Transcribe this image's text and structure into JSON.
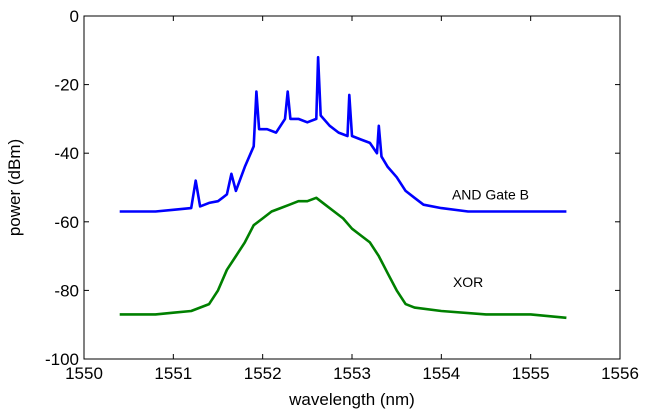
{
  "chart_data": {
    "type": "line",
    "xlabel": "wavelength (nm)",
    "ylabel": "power (dBm)",
    "xlim": [
      1550,
      1556
    ],
    "ylim": [
      -100,
      0
    ],
    "xticks": [
      1550,
      1551,
      1552,
      1553,
      1554,
      1555,
      1556
    ],
    "yticks": [
      0,
      -20,
      -40,
      -60,
      -80,
      -100
    ],
    "grid": false,
    "annotations": [
      {
        "text": "AND Gate B",
        "x": 1554.55,
        "y": -53.5
      },
      {
        "text": "XOR",
        "x": 1554.3,
        "y": -79
      }
    ],
    "series": [
      {
        "color": "#0000ff",
        "x": [
          1550.4,
          1550.6,
          1550.8,
          1551.0,
          1551.2,
          1551.25,
          1551.3,
          1551.4,
          1551.5,
          1551.55,
          1551.6,
          1551.65,
          1551.7,
          1551.8,
          1551.9,
          1551.93,
          1551.96,
          1552.05,
          1552.15,
          1552.25,
          1552.28,
          1552.31,
          1552.4,
          1552.5,
          1552.6,
          1552.62,
          1552.65,
          1552.75,
          1552.85,
          1552.95,
          1552.97,
          1553.0,
          1553.1,
          1553.2,
          1553.28,
          1553.3,
          1553.33,
          1553.4,
          1553.5,
          1553.6,
          1553.7,
          1553.8,
          1554.0,
          1554.3,
          1554.6,
          1555.0,
          1555.4
        ],
        "y": [
          -57,
          -57,
          -57,
          -56.5,
          -56,
          -48,
          -55.5,
          -54.5,
          -54,
          -53,
          -52,
          -46,
          -51,
          -44,
          -38,
          -22,
          -33,
          -33,
          -34,
          -30,
          -22,
          -30,
          -30,
          -31,
          -30,
          -12,
          -29,
          -32,
          -34,
          -35,
          -23,
          -35,
          -36,
          -37,
          -40,
          -32,
          -41,
          -44,
          -47,
          -51,
          -53,
          -55,
          -56,
          -57,
          -57,
          -57,
          -57
        ]
      },
      {
        "color": "#008000",
        "x": [
          1550.4,
          1550.6,
          1550.8,
          1551.0,
          1551.2,
          1551.4,
          1551.5,
          1551.6,
          1551.7,
          1551.8,
          1551.9,
          1552.0,
          1552.1,
          1552.2,
          1552.3,
          1552.4,
          1552.5,
          1552.6,
          1552.7,
          1552.8,
          1552.9,
          1553.0,
          1553.1,
          1553.2,
          1553.3,
          1553.4,
          1553.5,
          1553.6,
          1553.7,
          1554.0,
          1554.5,
          1555.0,
          1555.4
        ],
        "y": [
          -87,
          -87,
          -87,
          -86.5,
          -86,
          -84,
          -80,
          -74,
          -70,
          -66,
          -61,
          -59,
          -57,
          -56,
          -55,
          -54,
          -54,
          -53,
          -55,
          -57,
          -59,
          -62,
          -64,
          -66,
          -70,
          -75,
          -80,
          -84,
          -85,
          -86,
          -87,
          -87,
          -88
        ]
      }
    ]
  }
}
